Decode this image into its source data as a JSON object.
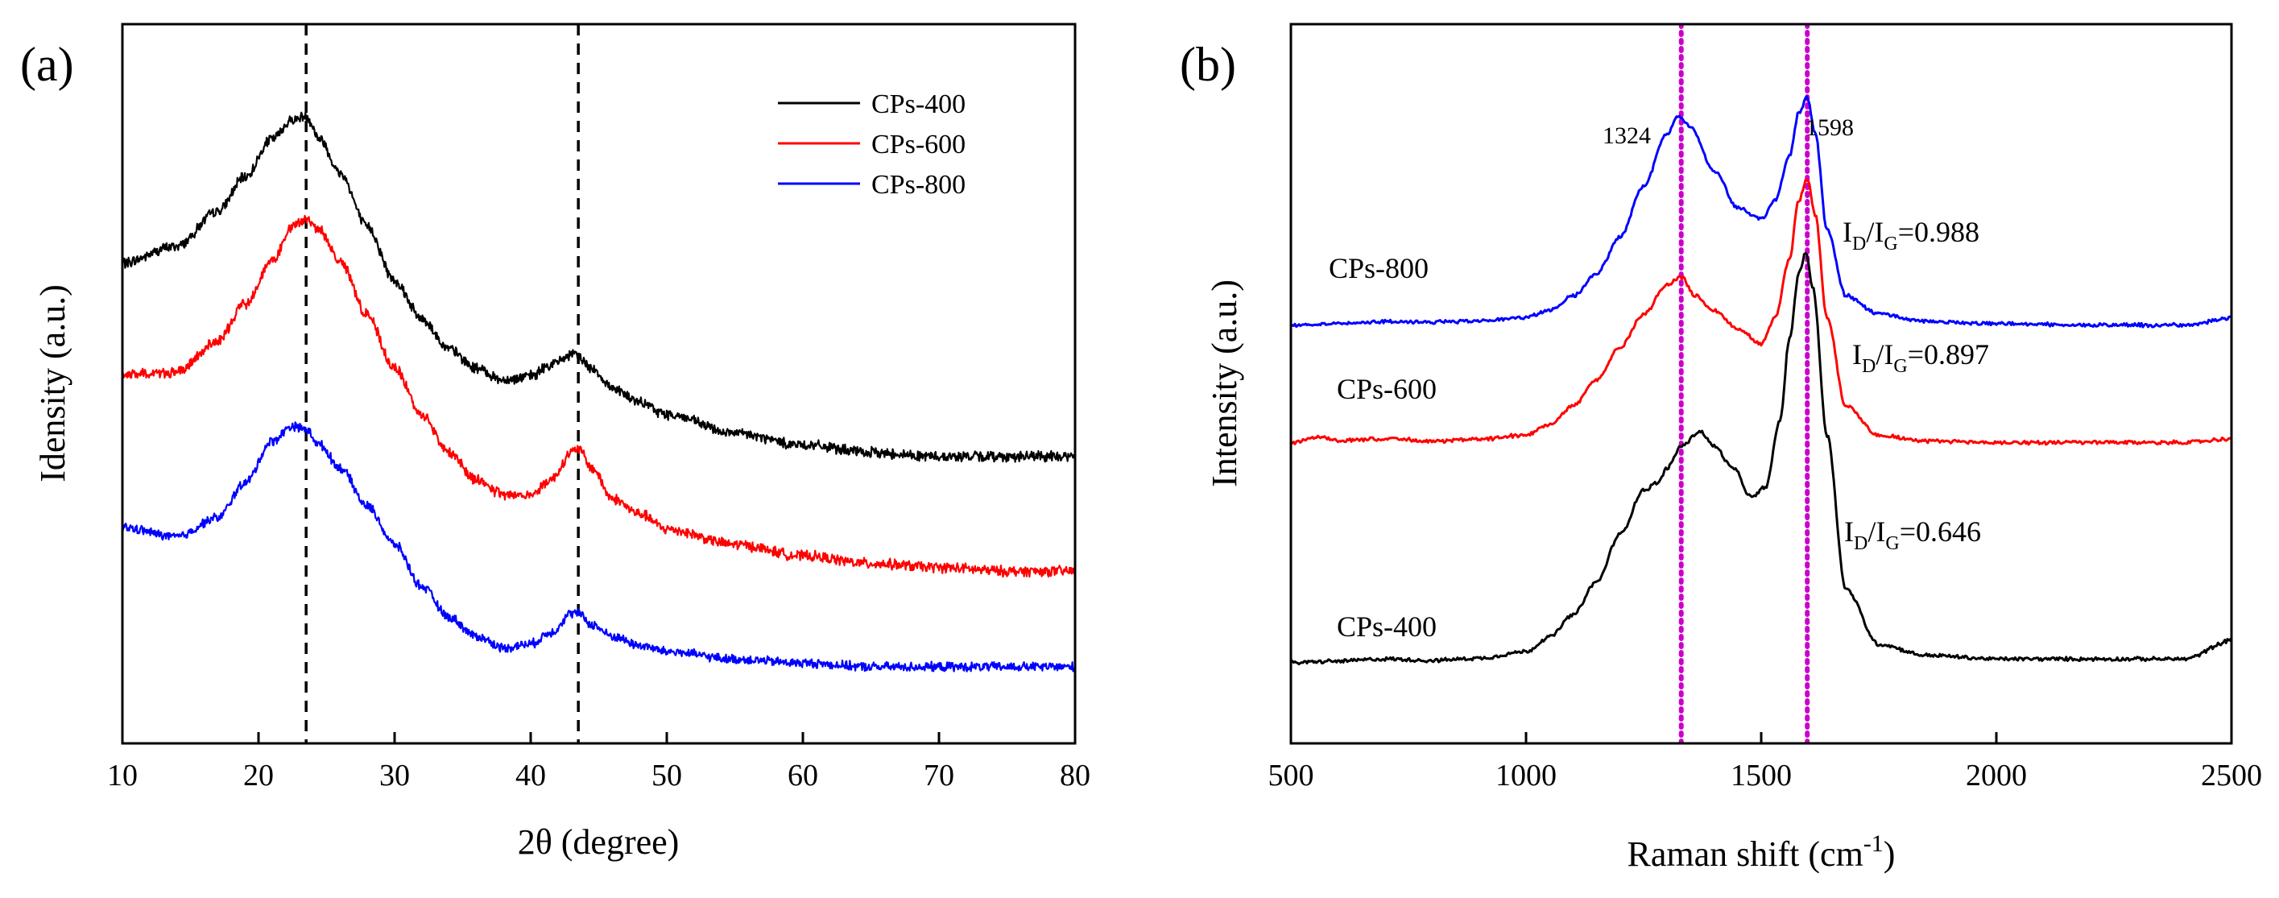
{
  "chart_data": [
    {
      "type": "line",
      "panel_label": "(a)",
      "xlabel": "2θ (degree)",
      "ylabel": "Idensity (a.u.)",
      "xlim": [
        10,
        80
      ],
      "xticks": [
        10,
        20,
        30,
        40,
        50,
        60,
        70,
        80
      ],
      "y_ticks_shown": false,
      "grid": false,
      "legend_position": "top-right",
      "reference_lines": [
        {
          "x": 23.5,
          "style": "dashed",
          "color": "#000000"
        },
        {
          "x": 43.5,
          "style": "dashed",
          "color": "#000000"
        }
      ],
      "series": [
        {
          "name": "CPs-400",
          "color": "#000000",
          "noise": 0.04,
          "x": [
            10,
            14,
            17,
            19,
            21,
            22.5,
            23.5,
            24.5,
            26,
            28,
            30,
            32,
            34,
            36,
            38,
            40,
            41.5,
            43,
            43.5,
            44.5,
            46,
            48,
            50,
            55,
            60,
            65,
            70,
            75,
            80
          ],
          "y": [
            6.28,
            6.5,
            6.95,
            7.4,
            7.9,
            8.15,
            8.2,
            7.9,
            7.45,
            6.75,
            6.05,
            5.55,
            5.15,
            4.9,
            4.75,
            4.8,
            4.95,
            5.08,
            5.05,
            4.9,
            4.65,
            4.45,
            4.3,
            4.05,
            3.9,
            3.8,
            3.75,
            3.75,
            3.75
          ]
        },
        {
          "name": "CPs-600",
          "color": "#ff0000",
          "noise": 0.04,
          "x": [
            10,
            14,
            17,
            19,
            21,
            22.5,
            23.5,
            24.5,
            26,
            28,
            30,
            32,
            34,
            36,
            38,
            40,
            41.5,
            43,
            43.5,
            44.5,
            46,
            48,
            50,
            55,
            60,
            65,
            70,
            75,
            80
          ],
          "y": [
            4.82,
            4.85,
            5.25,
            5.75,
            6.3,
            6.75,
            6.85,
            6.7,
            6.3,
            5.6,
            4.9,
            4.3,
            3.8,
            3.45,
            3.25,
            3.25,
            3.45,
            3.8,
            3.85,
            3.6,
            3.2,
            3.0,
            2.8,
            2.6,
            2.45,
            2.35,
            2.3,
            2.25,
            2.25
          ]
        },
        {
          "name": "CPs-800",
          "color": "#0000ff",
          "noise": 0.035,
          "x": [
            10,
            14,
            17,
            19,
            21,
            22.5,
            23.5,
            24.5,
            26,
            28,
            30,
            32,
            34,
            36,
            38,
            40,
            41.5,
            43,
            43.5,
            44.5,
            46,
            48,
            50,
            55,
            60,
            65,
            70,
            75,
            80
          ],
          "y": [
            2.82,
            2.7,
            2.95,
            3.4,
            3.95,
            4.15,
            4.1,
            3.9,
            3.6,
            3.1,
            2.6,
            2.05,
            1.65,
            1.4,
            1.25,
            1.3,
            1.45,
            1.7,
            1.7,
            1.55,
            1.4,
            1.28,
            1.2,
            1.1,
            1.05,
            1.0,
            1.0,
            1.0,
            1.0
          ]
        }
      ]
    },
    {
      "type": "line",
      "panel_label": "(b)",
      "xlabel": "Raman shift (cm",
      "xlabel_sup": "-1",
      "xlabel_close": ")",
      "ylabel": "Intensity (a.u.)",
      "xlim": [
        500,
        2500
      ],
      "xticks": [
        500,
        1000,
        1500,
        2000,
        2500
      ],
      "y_ticks_shown": false,
      "grid": false,
      "reference_lines": [
        {
          "x": 1330,
          "style": "dotted",
          "color": "#cc00cc"
        },
        {
          "x": 1598,
          "style": "dotted",
          "color": "#cc00cc"
        }
      ],
      "peak_labels": [
        {
          "text": "1324",
          "x": 1324
        },
        {
          "text": "1598",
          "x": 1598
        }
      ],
      "annotations": [
        {
          "series": "CPs-800",
          "label": "I",
          "sub1": "D",
          "slash": "/I",
          "sub2": "G",
          "value": "=0.988"
        },
        {
          "series": "CPs-600",
          "label": "I",
          "sub1": "D",
          "slash": "/I",
          "sub2": "G",
          "value": "=0.897"
        },
        {
          "series": "CPs-400",
          "label": "I",
          "sub1": "D",
          "slash": "/I",
          "sub2": "G",
          "value": "=0.646"
        }
      ],
      "series": [
        {
          "name": "CPs-800",
          "color": "#0000ff",
          "noise": 0.015,
          "x": [
            500,
            600,
            700,
            800,
            900,
            1000,
            1050,
            1100,
            1150,
            1200,
            1250,
            1300,
            1324,
            1350,
            1400,
            1450,
            1500,
            1530,
            1560,
            1580,
            1598,
            1615,
            1640,
            1680,
            1750,
            1850,
            2000,
            2200,
            2400,
            2500
          ],
          "y": [
            5.7,
            5.72,
            5.75,
            5.74,
            5.76,
            5.8,
            5.9,
            6.1,
            6.4,
            6.9,
            7.6,
            8.3,
            8.55,
            8.4,
            7.8,
            7.3,
            7.15,
            7.4,
            8.0,
            8.6,
            8.8,
            8.3,
            7.0,
            6.1,
            5.85,
            5.75,
            5.72,
            5.7,
            5.7,
            5.8
          ]
        },
        {
          "name": "CPs-600",
          "color": "#ff0000",
          "noise": 0.015,
          "x": [
            500,
            560,
            600,
            700,
            800,
            900,
            1000,
            1050,
            1100,
            1150,
            1200,
            1250,
            1300,
            1330,
            1360,
            1400,
            1450,
            1500,
            1530,
            1560,
            1580,
            1598,
            1615,
            1640,
            1680,
            1750,
            1850,
            2000,
            2200,
            2400,
            2500
          ],
          "y": [
            4.1,
            4.18,
            4.12,
            4.15,
            4.12,
            4.14,
            4.2,
            4.35,
            4.6,
            4.95,
            5.4,
            5.85,
            6.25,
            6.35,
            6.1,
            5.9,
            5.65,
            5.45,
            5.8,
            6.6,
            7.4,
            7.7,
            7.2,
            5.8,
            4.6,
            4.2,
            4.12,
            4.1,
            4.1,
            4.1,
            4.15
          ]
        },
        {
          "name": "CPs-400",
          "color": "#000000",
          "noise": 0.015,
          "x": [
            500,
            600,
            700,
            800,
            900,
            1000,
            1050,
            1100,
            1150,
            1200,
            1250,
            1280,
            1300,
            1330,
            1370,
            1400,
            1440,
            1480,
            1510,
            1540,
            1560,
            1580,
            1595,
            1610,
            1640,
            1680,
            1750,
            1850,
            2000,
            2200,
            2400,
            2500
          ],
          "y": [
            1.1,
            1.12,
            1.15,
            1.13,
            1.16,
            1.25,
            1.45,
            1.75,
            2.2,
            2.85,
            3.45,
            3.55,
            3.75,
            4.05,
            4.25,
            4.05,
            3.75,
            3.35,
            3.5,
            4.4,
            5.5,
            6.4,
            6.7,
            6.2,
            4.2,
            2.1,
            1.35,
            1.2,
            1.15,
            1.15,
            1.15,
            1.4
          ]
        }
      ]
    }
  ]
}
